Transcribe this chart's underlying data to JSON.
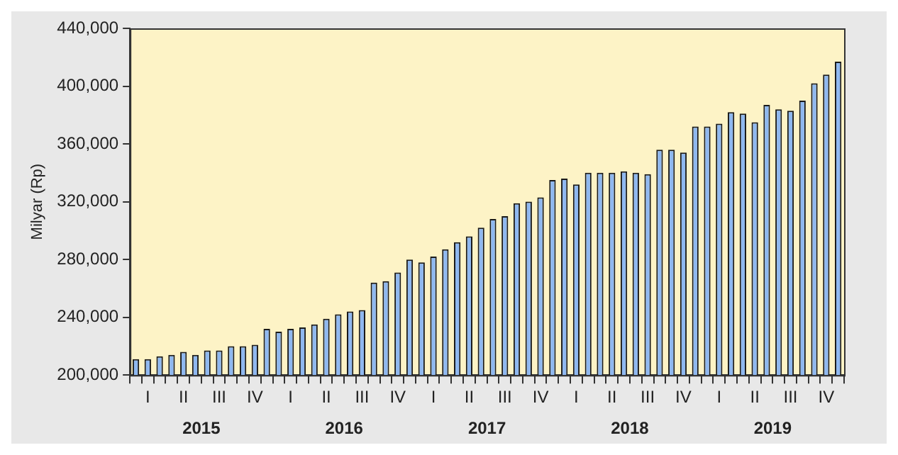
{
  "chart_data": {
    "type": "bar",
    "ylabel": "Milyar (Rp)",
    "categories": [
      null,
      "I",
      null,
      null,
      "II",
      null,
      null,
      "III",
      null,
      null,
      "IV",
      null,
      null,
      "I",
      null,
      null,
      "II",
      null,
      null,
      "III",
      null,
      null,
      "IV",
      null,
      null,
      "I",
      null,
      null,
      "II",
      null,
      null,
      "III",
      null,
      null,
      "IV",
      null,
      null,
      "I",
      null,
      null,
      "II",
      null,
      null,
      "III",
      null,
      null,
      "IV",
      null,
      null,
      "I",
      null,
      null,
      "II",
      null,
      null,
      "III",
      null,
      null,
      "IV",
      null
    ],
    "series": [
      {
        "color": "#8fb8f0",
        "values": [
          211000,
          211000,
          213000,
          214000,
          216000,
          214000,
          217000,
          217000,
          220000,
          220000,
          221000,
          232000,
          230000,
          232000,
          233000,
          235000,
          239000,
          242000,
          244000,
          245000,
          264000,
          265000,
          271000,
          280000,
          278000,
          282000,
          287000,
          292000,
          296000,
          302000,
          308000,
          310000,
          319000,
          320000,
          323000,
          335000,
          336000,
          332000,
          340000,
          340000,
          340000,
          341000,
          340000,
          339000,
          356000,
          356000,
          354000,
          372000,
          372000,
          374000,
          382000,
          381000,
          375000,
          387000,
          384000,
          383000,
          390000,
          402000,
          408000,
          417000
        ]
      }
    ],
    "ylim": [
      200000,
      440000
    ],
    "yticks": [
      {
        "value": 200000,
        "label": "200,000"
      },
      {
        "value": 240000,
        "label": "240,000"
      },
      {
        "value": 280000,
        "label": "280,000"
      },
      {
        "value": 320000,
        "label": "320,000"
      },
      {
        "value": 360000,
        "label": "360,000"
      },
      {
        "value": 400000,
        "label": "400,000"
      },
      {
        "value": 440000,
        "label": "440,000"
      }
    ],
    "annotations": [
      "2015",
      "2016",
      "2017",
      "2018",
      "2019"
    ],
    "grid": false,
    "legend": false
  }
}
